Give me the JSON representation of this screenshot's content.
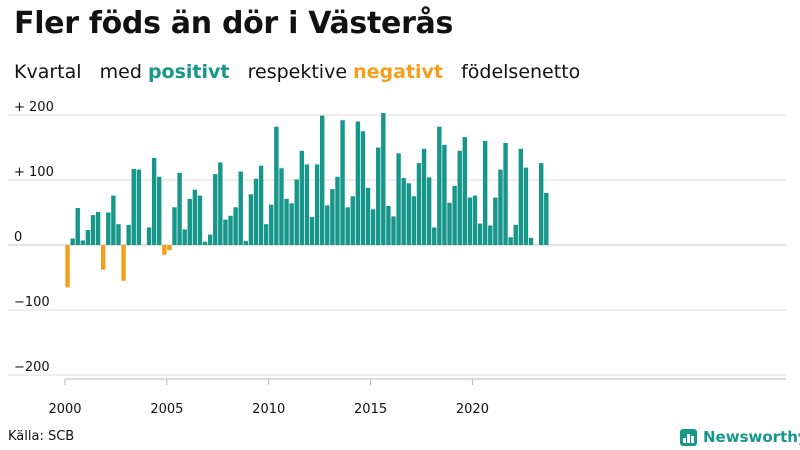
{
  "title": "Fler föds än dör i Västerås",
  "subtitle": {
    "part1": "Kvartal   med ",
    "positive": "positivt",
    "part2": "   respektive ",
    "negative": "negativt",
    "part3": "   födelsenetto"
  },
  "source": "Källa: SCB",
  "logo": {
    "text": "Newsworthy",
    "icon": "bar-chart-logo-icon"
  },
  "colors": {
    "positive": "#16978a",
    "negative": "#f59e1b",
    "grid": "#dddddd",
    "axis": "#bbbbbb"
  },
  "chart_data": {
    "type": "bar",
    "title": "Fler föds än dör i Västerås",
    "xlabel": "",
    "ylabel": "",
    "x_start": {
      "year": 2000,
      "quarter": 1
    },
    "x_tick_labels": [
      "2000",
      "2005",
      "2010",
      "2015",
      "2020"
    ],
    "y_tick_values": [
      200,
      100,
      0,
      -100,
      -200
    ],
    "y_tick_labels": [
      "+ 200",
      "+ 100",
      "0",
      "−100",
      "−200"
    ],
    "ylim": [
      -210,
      210
    ],
    "grid": true,
    "values": [
      -65,
      10,
      57,
      7,
      23,
      46,
      51,
      -38,
      50,
      76,
      32,
      -55,
      31,
      117,
      116,
      0,
      27,
      134,
      105,
      -15,
      -8,
      58,
      111,
      24,
      71,
      85,
      76,
      5,
      16,
      109,
      127,
      39,
      45,
      58,
      113,
      6,
      78,
      102,
      122,
      32,
      62,
      182,
      118,
      71,
      64,
      101,
      145,
      124,
      43,
      124,
      199,
      61,
      86,
      105,
      192,
      58,
      75,
      190,
      175,
      88,
      55,
      150,
      203,
      60,
      44,
      141,
      103,
      95,
      75,
      126,
      148,
      104,
      27,
      182,
      154,
      65,
      91,
      145,
      166,
      73,
      76,
      33,
      160,
      30,
      73,
      116,
      157,
      12,
      31,
      148,
      119,
      11,
      0,
      126,
      80
    ]
  }
}
